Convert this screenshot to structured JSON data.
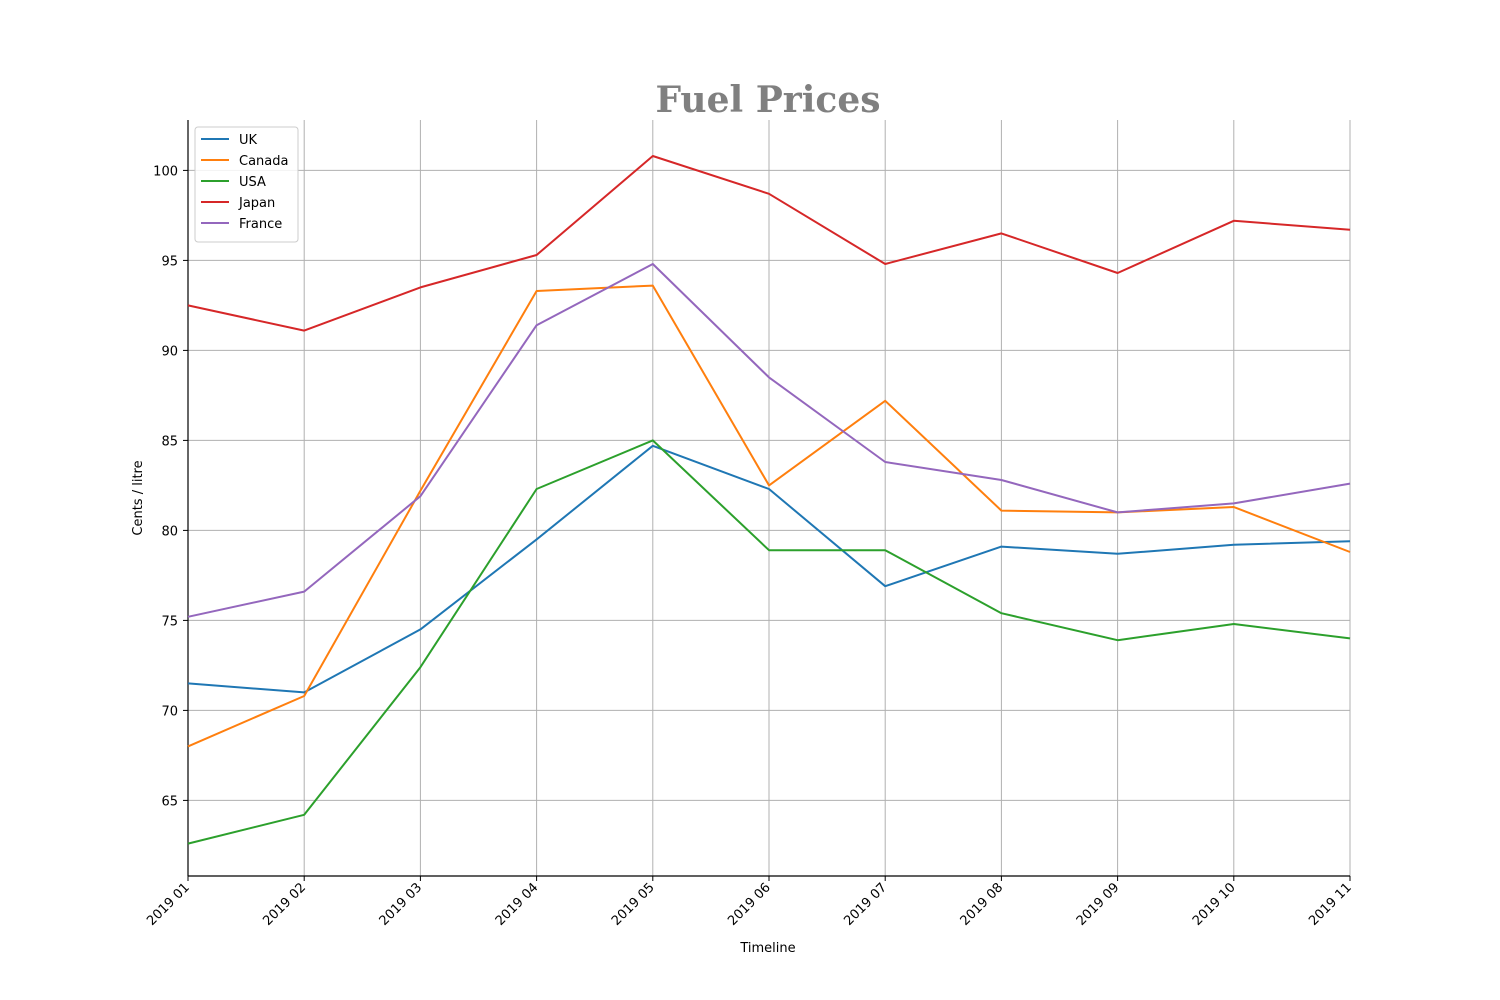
{
  "chart_data": {
    "type": "line",
    "title": "Fuel Prices",
    "xlabel": "Timeline",
    "ylabel": "Cents / litre",
    "categories": [
      "2019 01",
      "2019 02",
      "2019 03",
      "2019 04",
      "2019 05",
      "2019 06",
      "2019 07",
      "2019 08",
      "2019 09",
      "2019 10",
      "2019 11"
    ],
    "yticks": [
      "65",
      "70",
      "75",
      "80",
      "85",
      "90",
      "95",
      "100"
    ],
    "ylim": [
      60.8,
      102.8
    ],
    "grid": true,
    "legend_position": "top-left",
    "series": [
      {
        "name": "UK",
        "color": "#1f77b4",
        "values": [
          71.5,
          71.0,
          74.5,
          79.5,
          84.7,
          82.3,
          76.9,
          79.1,
          78.7,
          79.2,
          79.4
        ]
      },
      {
        "name": "Canada",
        "color": "#ff7f0e",
        "values": [
          68.0,
          70.8,
          82.2,
          93.3,
          93.6,
          82.5,
          87.2,
          81.1,
          81.0,
          81.3,
          78.8
        ]
      },
      {
        "name": "USA",
        "color": "#2ca02c",
        "values": [
          62.6,
          64.2,
          72.4,
          82.3,
          85.0,
          78.9,
          78.9,
          75.4,
          73.9,
          74.8,
          74.0
        ]
      },
      {
        "name": "Japan",
        "color": "#d62728",
        "values": [
          92.5,
          91.1,
          93.5,
          95.3,
          100.8,
          98.7,
          94.8,
          96.5,
          94.3,
          97.2,
          96.7
        ]
      },
      {
        "name": "France",
        "color": "#9467bd",
        "values": [
          75.2,
          76.6,
          81.9,
          91.4,
          94.8,
          88.5,
          83.8,
          82.8,
          81.0,
          81.5,
          82.6
        ]
      }
    ]
  }
}
